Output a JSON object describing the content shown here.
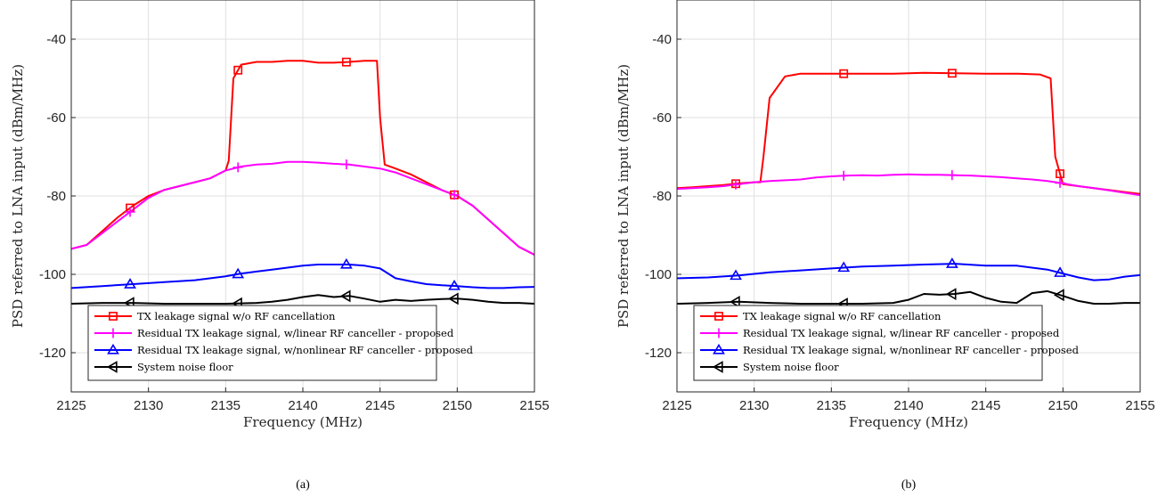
{
  "chart_data": [
    {
      "type": "line",
      "caption": "(a)",
      "xlabel": "Frequency (MHz)",
      "ylabel": "PSD referred to LNA input (dBm/MHz)",
      "xlim": [
        2125,
        2155
      ],
      "ylim": [
        -130,
        -30
      ],
      "xticks": [
        2125,
        2130,
        2135,
        2140,
        2145,
        2150,
        2155
      ],
      "yticks": [
        -40,
        -60,
        -80,
        -100,
        -120
      ],
      "grid": true,
      "legend_position": "bottom-left",
      "series": [
        {
          "name": "TX leakage signal w/o RF cancellation",
          "color": "#ff0000",
          "marker": "square",
          "x": [
            2125,
            2126,
            2127,
            2128,
            2129,
            2130,
            2131,
            2132,
            2133,
            2134,
            2135,
            2135.2,
            2135.5,
            2136,
            2137,
            2138,
            2139,
            2140,
            2141,
            2142,
            2143,
            2144,
            2144.8,
            2145,
            2145.3,
            2146,
            2147,
            2148,
            2149,
            2150,
            2151,
            2152,
            2153,
            2154,
            2155
          ],
          "y": [
            -93.5,
            -92.5,
            -89,
            -85.5,
            -82.5,
            -80,
            -78.5,
            -77.5,
            -76.5,
            -75.5,
            -73.5,
            -71,
            -50,
            -46.5,
            -45.8,
            -45.8,
            -45.5,
            -45.5,
            -46,
            -46,
            -45.8,
            -45.5,
            -45.5,
            -60,
            -72,
            -73,
            -74.5,
            -76.5,
            -78.5,
            -80,
            -82.5,
            -86,
            -89.5,
            -93,
            -95
          ]
        },
        {
          "name": "Residual TX leakage signal, w/linear RF canceller - proposed",
          "color": "#ff00ff",
          "marker": "plus",
          "x": [
            2125,
            2126,
            2127,
            2128,
            2129,
            2130,
            2131,
            2132,
            2133,
            2134,
            2135,
            2136,
            2137,
            2138,
            2139,
            2140,
            2141,
            2142,
            2143,
            2144,
            2145,
            2146,
            2147,
            2148,
            2149,
            2150,
            2151,
            2152,
            2153,
            2154,
            2155
          ],
          "y": [
            -93.5,
            -92.5,
            -89.5,
            -86.5,
            -83.5,
            -80.5,
            -78.5,
            -77.5,
            -76.5,
            -75.5,
            -73.5,
            -72.5,
            -72,
            -71.8,
            -71.3,
            -71.3,
            -71.5,
            -71.8,
            -72,
            -72.5,
            -73,
            -74,
            -75.5,
            -77,
            -78.5,
            -80,
            -82.5,
            -86,
            -89.5,
            -93,
            -95
          ]
        },
        {
          "name": "Residual TX leakage signal, w/nonlinear RF canceller - proposed",
          "color": "#0000ff",
          "marker": "triangle-up",
          "x": [
            2125,
            2127,
            2129,
            2131,
            2133,
            2135,
            2136,
            2137,
            2138,
            2139,
            2140,
            2141,
            2142,
            2143,
            2144,
            2145,
            2146,
            2147,
            2148,
            2149,
            2150,
            2151,
            2152,
            2153,
            2154,
            2155
          ],
          "y": [
            -103.5,
            -103,
            -102.5,
            -102,
            -101.5,
            -100.5,
            -99.8,
            -99.3,
            -98.8,
            -98.3,
            -97.8,
            -97.5,
            -97.5,
            -97.5,
            -97.8,
            -98.5,
            -101,
            -101.8,
            -102.5,
            -102.8,
            -103,
            -103.3,
            -103.5,
            -103.5,
            -103.3,
            -103.2
          ]
        },
        {
          "name": "System noise floor",
          "color": "#000000",
          "marker": "triangle-left",
          "x": [
            2125,
            2127,
            2129,
            2131,
            2133,
            2135,
            2137,
            2138,
            2139,
            2140,
            2141,
            2142,
            2143,
            2144,
            2145,
            2146,
            2147,
            2148,
            2149,
            2150,
            2151,
            2152,
            2153,
            2154,
            2155
          ],
          "y": [
            -107.5,
            -107.3,
            -107.3,
            -107.5,
            -107.5,
            -107.5,
            -107.3,
            -107,
            -106.5,
            -105.8,
            -105.3,
            -105.8,
            -105.5,
            -106.2,
            -107,
            -106.5,
            -106.8,
            -106.5,
            -106.3,
            -106.2,
            -106.5,
            -107,
            -107.3,
            -107.3,
            -107.5
          ]
        }
      ]
    },
    {
      "type": "line",
      "caption": "(b)",
      "xlabel": "Frequency (MHz)",
      "ylabel": "PSD referred to LNA input (dBm/MHz)",
      "xlim": [
        2125,
        2155
      ],
      "ylim": [
        -130,
        -30
      ],
      "xticks": [
        2125,
        2130,
        2135,
        2140,
        2145,
        2150,
        2155
      ],
      "yticks": [
        -40,
        -60,
        -80,
        -100,
        -120
      ],
      "grid": true,
      "legend_position": "bottom-left",
      "series": [
        {
          "name": "TX leakage signal w/o RF cancellation",
          "color": "#ff0000",
          "marker": "square",
          "x": [
            2125,
            2126,
            2127,
            2128,
            2129,
            2130,
            2130.4,
            2130.6,
            2131,
            2132,
            2133,
            2135,
            2137,
            2139,
            2141,
            2143,
            2145,
            2147,
            2148.5,
            2149.2,
            2149.5,
            2150,
            2151,
            2152,
            2153,
            2154,
            2155
          ],
          "y": [
            -78,
            -77.8,
            -77.5,
            -77.2,
            -76.8,
            -76.5,
            -76.5,
            -70,
            -55,
            -49.5,
            -48.8,
            -48.8,
            -48.8,
            -48.8,
            -48.6,
            -48.7,
            -48.8,
            -48.8,
            -49,
            -50,
            -70,
            -77,
            -77.5,
            -78,
            -78.5,
            -79,
            -79.5
          ]
        },
        {
          "name": "Residual TX leakage signal, w/linear RF canceller - proposed",
          "color": "#ff00ff",
          "marker": "plus",
          "x": [
            2125,
            2126,
            2127,
            2128,
            2129,
            2130,
            2131,
            2132,
            2133,
            2134,
            2135,
            2136,
            2137,
            2138,
            2139,
            2140,
            2141,
            2142,
            2143,
            2144,
            2145,
            2146,
            2147,
            2148,
            2149,
            2150,
            2151,
            2152,
            2153,
            2154,
            2155
          ],
          "y": [
            -78.2,
            -78,
            -77.8,
            -77.5,
            -77,
            -76.5,
            -76.2,
            -76,
            -75.8,
            -75.3,
            -75,
            -74.8,
            -74.7,
            -74.8,
            -74.6,
            -74.5,
            -74.6,
            -74.6,
            -74.7,
            -74.8,
            -75,
            -75.2,
            -75.5,
            -75.8,
            -76.2,
            -76.8,
            -77.5,
            -78,
            -78.6,
            -79.2,
            -79.8
          ]
        },
        {
          "name": "Residual TX leakage signal, w/nonlinear RF canceller - proposed",
          "color": "#0000ff",
          "marker": "triangle-up",
          "x": [
            2125,
            2127,
            2129,
            2131,
            2133,
            2135,
            2137,
            2139,
            2141,
            2143,
            2145,
            2147,
            2149,
            2150,
            2151,
            2152,
            2153,
            2154,
            2155
          ],
          "y": [
            -101,
            -100.8,
            -100.3,
            -99.5,
            -99,
            -98.5,
            -98,
            -97.8,
            -97.5,
            -97.3,
            -97.8,
            -97.8,
            -98.8,
            -99.8,
            -100.8,
            -101.5,
            -101.3,
            -100.6,
            -100.2
          ]
        },
        {
          "name": "System noise floor",
          "color": "#000000",
          "marker": "triangle-left",
          "x": [
            2125,
            2127,
            2129,
            2131,
            2133,
            2135,
            2137,
            2139,
            2140,
            2141,
            2142,
            2143,
            2144,
            2145,
            2146,
            2147,
            2148,
            2149,
            2150,
            2151,
            2152,
            2153,
            2154,
            2155
          ],
          "y": [
            -107.5,
            -107.3,
            -107,
            -107.3,
            -107.5,
            -107.5,
            -107.5,
            -107.3,
            -106.5,
            -105,
            -105.2,
            -105,
            -104.5,
            -106,
            -107,
            -107.3,
            -104.8,
            -104.3,
            -105.5,
            -106.8,
            -107.5,
            -107.5,
            -107.3,
            -107.3
          ]
        }
      ]
    }
  ]
}
